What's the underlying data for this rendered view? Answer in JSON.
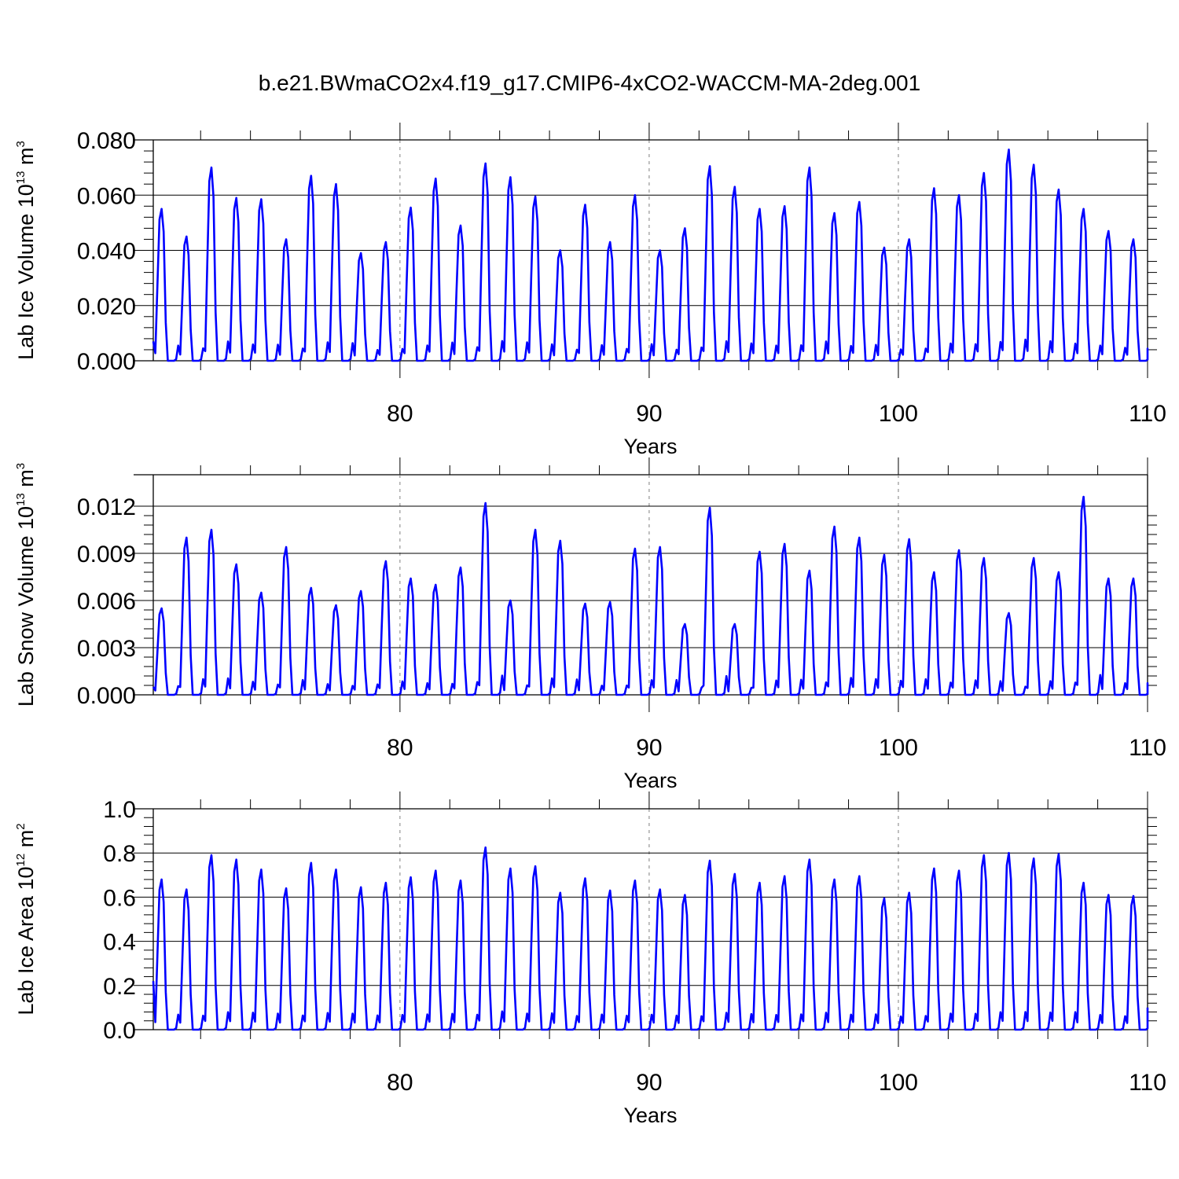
{
  "title": "b.e21.BWmaCO2x4.f19_g17.CMIP6-4xCO2-WACCM-MA-2deg.001",
  "colors": {
    "series": "#0000ff",
    "axis": "#000000",
    "grid": "#808080"
  },
  "chart_data": [
    {
      "type": "line",
      "ylabel": {
        "text": "Lab Ice Volume 10",
        "exp": "13",
        "unit": " m",
        "unit_exp": "3"
      },
      "xlabel": "Years",
      "xlim": [
        70.1,
        110
      ],
      "ylim": [
        0,
        0.08
      ],
      "x_ticks": [
        80,
        90,
        100,
        110
      ],
      "x_tick_labels": [
        "80",
        "90",
        "100",
        "110"
      ],
      "y_ticks": [
        0,
        0.02,
        0.04,
        0.06,
        0.08
      ],
      "y_tick_labels": [
        "0.000",
        "0.020",
        "0.040",
        "0.060",
        "0.080"
      ],
      "x_start": 70.1,
      "x_step": 0.0833333,
      "peaks": [
        0.055,
        0.045,
        0.07,
        0.059,
        0.0585,
        0.044,
        0.067,
        0.064,
        0.039,
        0.043,
        0.0555,
        0.066,
        0.049,
        0.0715,
        0.0665,
        0.0595,
        0.04,
        0.0565,
        0.043,
        0.06,
        0.04,
        0.048,
        0.0705,
        0.063,
        0.055,
        0.056,
        0.07,
        0.0535,
        0.0575,
        0.041,
        0.044,
        0.0625,
        0.06,
        0.068,
        0.0765,
        0.071,
        0.062,
        0.055,
        0.047,
        0.044
      ],
      "start_value": 0.007,
      "end_value": 0.0025,
      "series": [
        {
          "name": "Lab Ice Volume",
          "color": "#0000ff"
        }
      ]
    },
    {
      "type": "line",
      "ylabel": {
        "text": "Lab Snow Volume 10",
        "exp": "13",
        "unit": " m",
        "unit_exp": "3"
      },
      "xlabel": "Years",
      "xlim": [
        70.1,
        110
      ],
      "ylim": [
        0,
        0.014
      ],
      "x_ticks": [
        80,
        90,
        100,
        110
      ],
      "x_tick_labels": [
        "80",
        "90",
        "100",
        "110"
      ],
      "y_ticks": [
        0,
        0.003,
        0.006,
        0.009,
        0.012
      ],
      "y_tick_labels": [
        "0.000",
        "0.003",
        "0.006",
        "0.009",
        "0.012"
      ],
      "x_start": 70.1,
      "x_step": 0.0833333,
      "peaks": [
        0.0055,
        0.01,
        0.0105,
        0.0083,
        0.0065,
        0.0094,
        0.0068,
        0.0057,
        0.0066,
        0.0085,
        0.0074,
        0.007,
        0.0081,
        0.0122,
        0.006,
        0.0105,
        0.0098,
        0.0058,
        0.0059,
        0.0093,
        0.0094,
        0.0045,
        0.0119,
        0.0045,
        0.0091,
        0.0096,
        0.0079,
        0.0107,
        0.01,
        0.0089,
        0.0099,
        0.0078,
        0.0092,
        0.0087,
        0.0052,
        0.0087,
        0.0078,
        0.0126,
        0.0074,
        0.0074
      ],
      "start_value": 0.0005,
      "end_value": 0.0,
      "series": [
        {
          "name": "Lab Snow Volume",
          "color": "#0000ff"
        }
      ]
    },
    {
      "type": "line",
      "ylabel": {
        "text": "Lab Ice Area 10",
        "exp": "12",
        "unit": " m",
        "unit_exp": "2"
      },
      "xlabel": "Years",
      "xlim": [
        70.1,
        110
      ],
      "ylim": [
        0,
        1.0
      ],
      "x_ticks": [
        80,
        90,
        100,
        110
      ],
      "x_tick_labels": [
        "80",
        "90",
        "100",
        "110"
      ],
      "y_ticks": [
        0,
        0.2,
        0.4,
        0.6,
        0.8,
        1.0
      ],
      "y_tick_labels": [
        "0.0",
        "0.2",
        "0.4",
        "0.6",
        "0.8",
        "1.0"
      ],
      "x_start": 70.1,
      "x_step": 0.0833333,
      "peaks": [
        0.68,
        0.635,
        0.79,
        0.77,
        0.725,
        0.64,
        0.755,
        0.725,
        0.645,
        0.665,
        0.69,
        0.72,
        0.675,
        0.825,
        0.73,
        0.74,
        0.62,
        0.685,
        0.63,
        0.675,
        0.635,
        0.61,
        0.765,
        0.705,
        0.665,
        0.695,
        0.77,
        0.68,
        0.695,
        0.595,
        0.62,
        0.73,
        0.72,
        0.79,
        0.8,
        0.775,
        0.795,
        0.665,
        0.61,
        0.605
      ],
      "start_value": 0.22,
      "end_value": 0.1,
      "series": [
        {
          "name": "Lab Ice Area",
          "color": "#0000ff"
        }
      ]
    }
  ]
}
